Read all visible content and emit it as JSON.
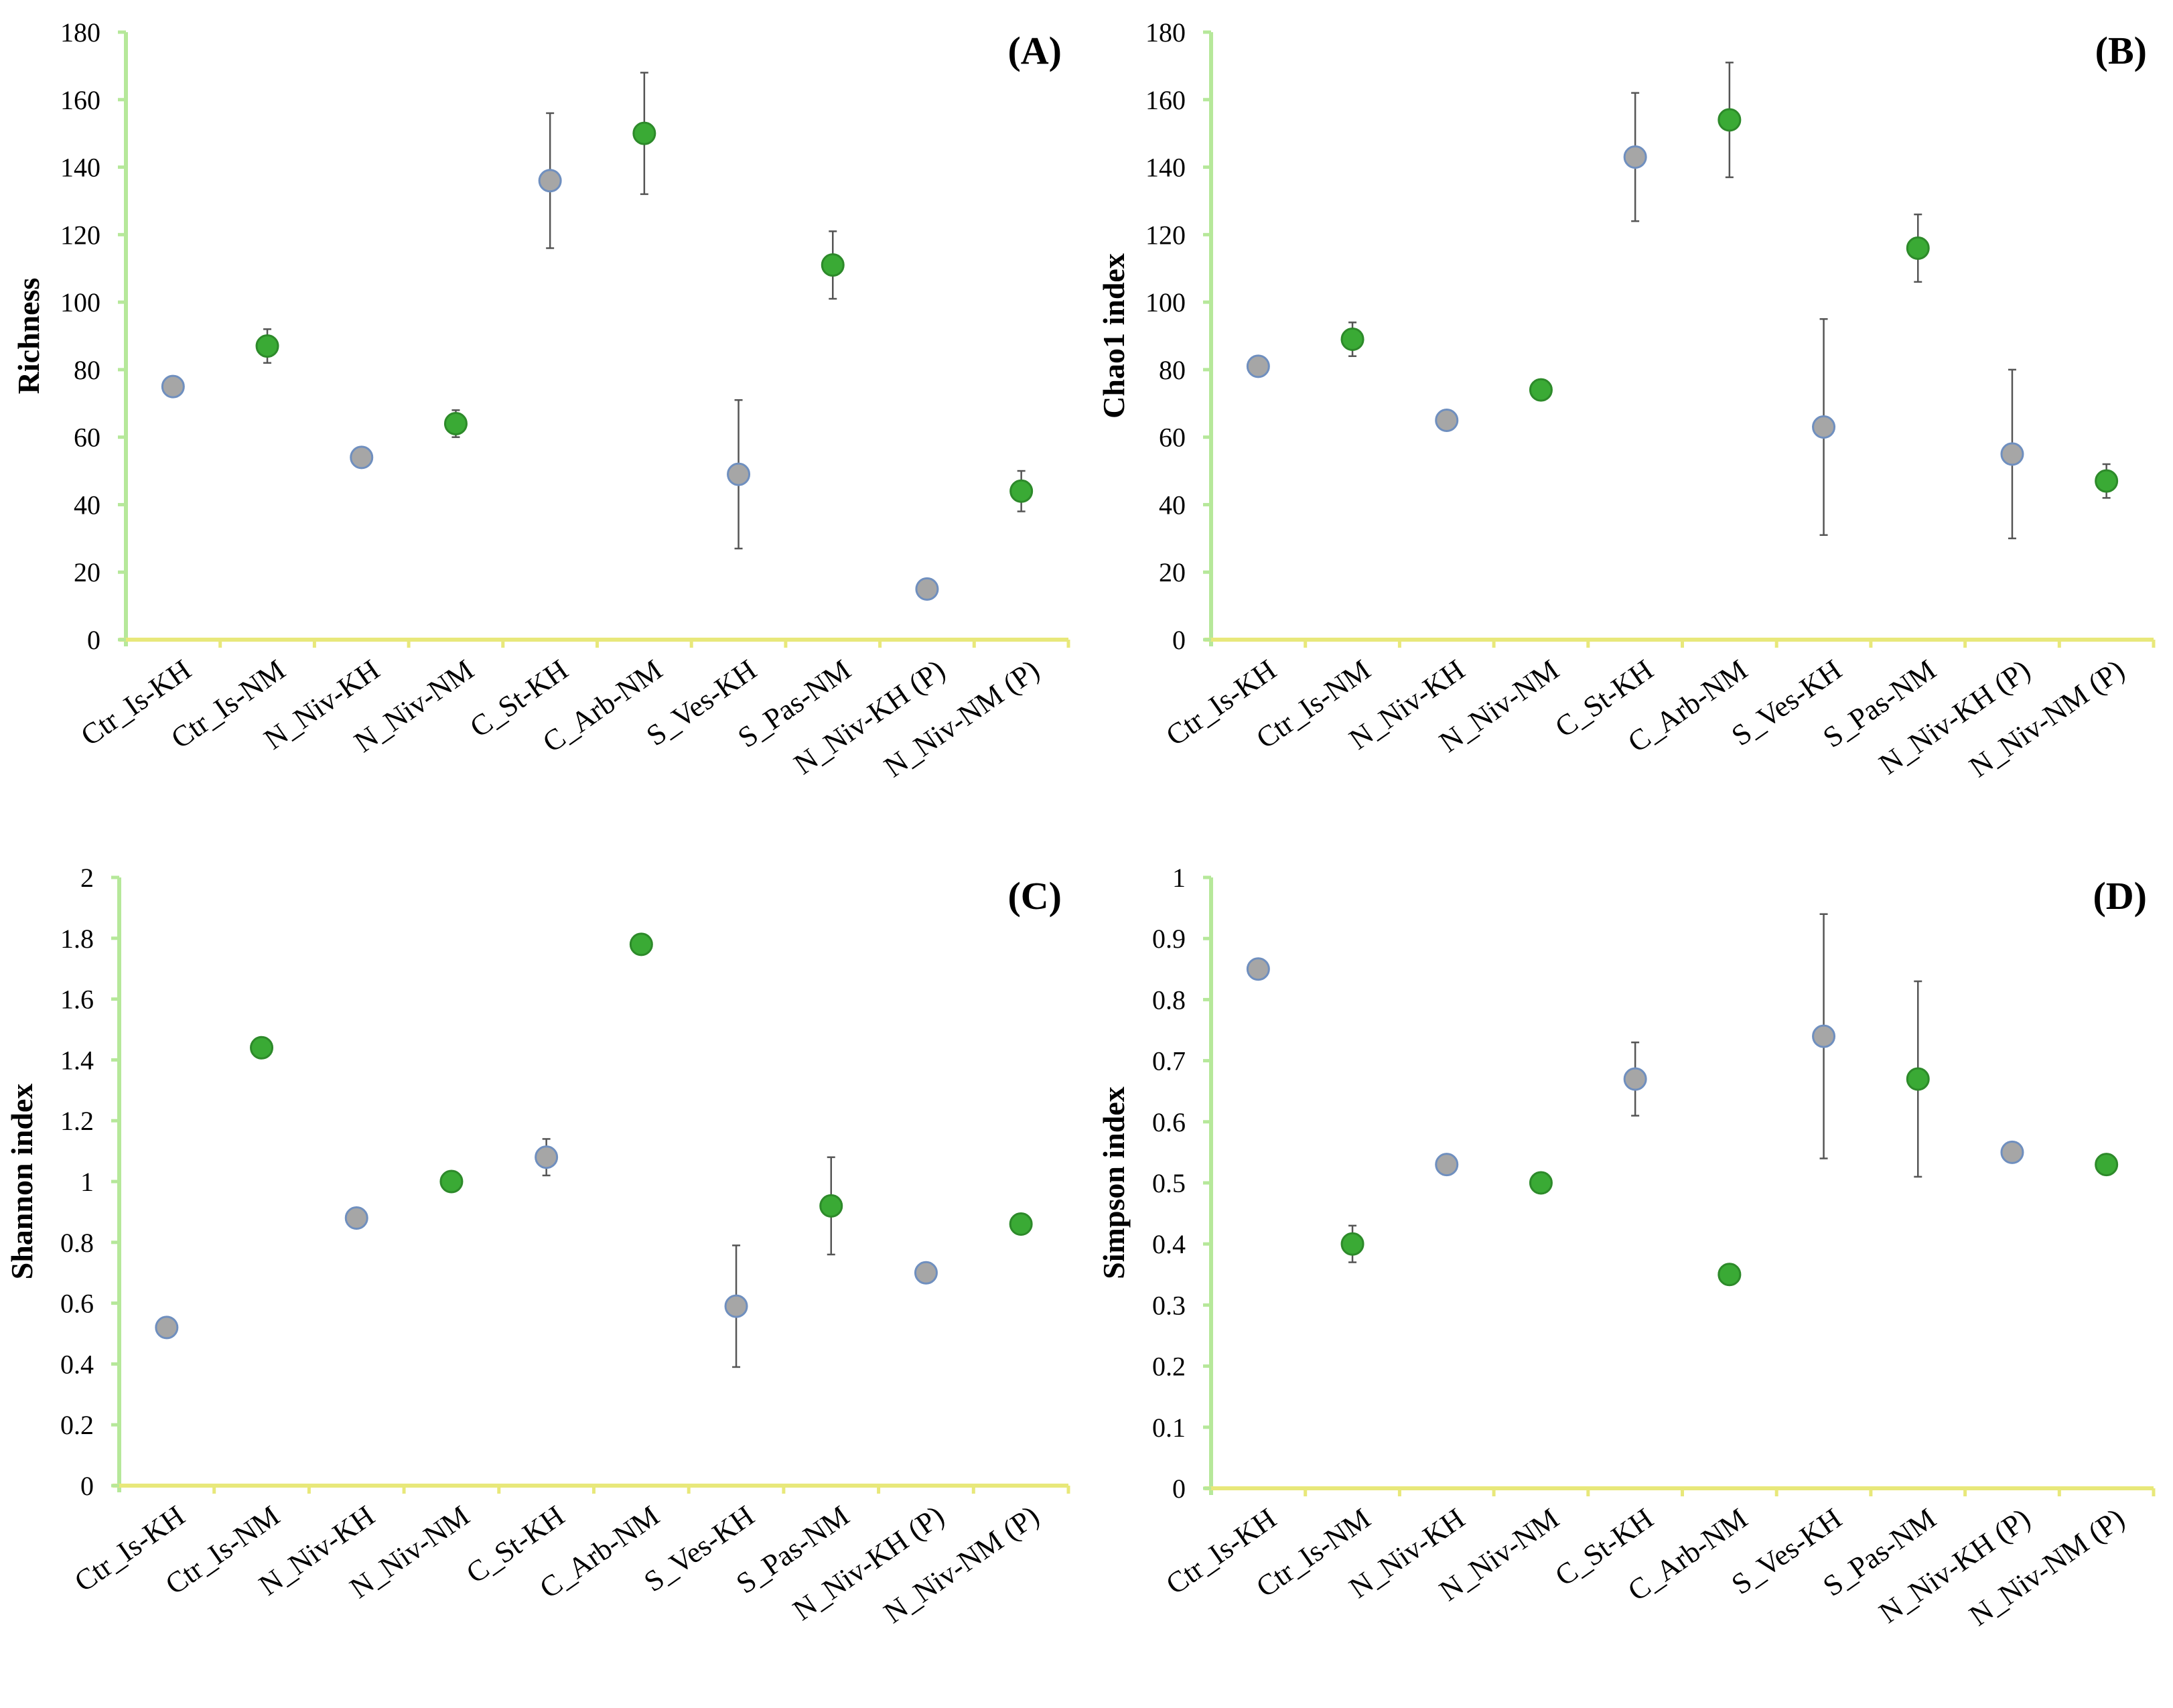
{
  "colors": {
    "kh_marker": "#a6a6a6",
    "kh_marker_edge": "#6f8fbf",
    "nm_marker": "#3aaa35",
    "nm_marker_edge": "#2d8a2a",
    "y_axis": "#b6e89a",
    "x_axis": "#e8e87a",
    "error_bar": "#555555"
  },
  "chart_data": [
    {
      "type": "scatter",
      "title": "(A)",
      "ylabel": "Richness",
      "xlabel": "",
      "ylim": [
        0,
        180
      ],
      "yticks": [
        0,
        20,
        40,
        60,
        80,
        100,
        120,
        140,
        160,
        180
      ],
      "yticklabels": [
        "0",
        "20",
        "40",
        "60",
        "80",
        "100",
        "120",
        "140",
        "160",
        "180"
      ],
      "categories": [
        "Ctr_Is-KH",
        "Ctr_Is-NM",
        "N_Niv-KH",
        "N_Niv-NM",
        "C_St-KH",
        "C_Arb-NM",
        "S_Ves-KH",
        "S_Pas-NM",
        "N_Niv-KH (P)",
        "N_Niv-NM (P)"
      ],
      "groups": [
        "KH",
        "NM",
        "KH",
        "NM",
        "KH",
        "NM",
        "KH",
        "NM",
        "KH",
        "NM"
      ],
      "values": [
        75,
        87,
        54,
        64,
        136,
        150,
        49,
        111,
        15,
        44
      ],
      "errors": [
        0,
        5,
        0,
        4,
        20,
        18,
        22,
        10,
        2,
        6
      ],
      "grid": false
    },
    {
      "type": "scatter",
      "title": "(B)",
      "ylabel": "Chao1 index",
      "xlabel": "",
      "ylim": [
        0,
        180
      ],
      "yticks": [
        0,
        20,
        40,
        60,
        80,
        100,
        120,
        140,
        160,
        180
      ],
      "yticklabels": [
        "0",
        "20",
        "40",
        "60",
        "80",
        "100",
        "120",
        "140",
        "160",
        "180"
      ],
      "categories": [
        "Ctr_Is-KH",
        "Ctr_Is-NM",
        "N_Niv-KH",
        "N_Niv-NM",
        "C_St-KH",
        "C_Arb-NM",
        "S_Ves-KH",
        "S_Pas-NM",
        "N_Niv-KH (P)",
        "N_Niv-NM (P)"
      ],
      "groups": [
        "KH",
        "NM",
        "KH",
        "NM",
        "KH",
        "NM",
        "KH",
        "NM",
        "KH",
        "NM"
      ],
      "values": [
        81,
        89,
        65,
        74,
        143,
        154,
        63,
        116,
        55,
        47
      ],
      "errors": [
        0,
        5,
        0,
        0,
        19,
        17,
        32,
        10,
        25,
        5
      ],
      "grid": false
    },
    {
      "type": "scatter",
      "title": "(C)",
      "ylabel": "Shannon index",
      "xlabel": "",
      "ylim": [
        0,
        2
      ],
      "yticks": [
        0,
        0.2,
        0.4,
        0.6,
        0.8,
        1,
        1.2,
        1.4,
        1.6,
        1.8,
        2
      ],
      "yticklabels": [
        "0",
        "0.2",
        "0.4",
        "0.6",
        "0.8",
        "1",
        "1.2",
        "1.4",
        "1.6",
        "1.8",
        "2"
      ],
      "categories": [
        "Ctr_Is-KH",
        "Ctr_Is-NM",
        "N_Niv-KH",
        "N_Niv-NM",
        "C_St-KH",
        "C_Arb-NM",
        "S_Ves-KH",
        "S_Pas-NM",
        "N_Niv-KH (P)",
        "N_Niv-NM (P)"
      ],
      "groups": [
        "KH",
        "NM",
        "KH",
        "NM",
        "KH",
        "NM",
        "KH",
        "NM",
        "KH",
        "NM"
      ],
      "values": [
        0.52,
        1.44,
        0.88,
        1.0,
        1.08,
        1.78,
        0.59,
        0.92,
        0.7,
        0.86
      ],
      "errors": [
        0,
        0,
        0,
        0,
        0.06,
        0,
        0.2,
        0.16,
        0,
        0
      ],
      "grid": false
    },
    {
      "type": "scatter",
      "title": "(D)",
      "ylabel": "Simpson index",
      "xlabel": "",
      "ylim": [
        0,
        1
      ],
      "yticks": [
        0,
        0.1,
        0.2,
        0.3,
        0.4,
        0.5,
        0.6,
        0.7,
        0.8,
        0.9,
        1
      ],
      "yticklabels": [
        "0",
        "0.1",
        "0.2",
        "0.3",
        "0.4",
        "0.5",
        "0.6",
        "0.7",
        "0.8",
        "0.9",
        "1"
      ],
      "categories": [
        "Ctr_Is-KH",
        "Ctr_Is-NM",
        "N_Niv-KH",
        "N_Niv-NM",
        "C_St-KH",
        "C_Arb-NM",
        "S_Ves-KH",
        "S_Pas-NM",
        "N_Niv-KH (P)",
        "N_Niv-NM (P)"
      ],
      "groups": [
        "KH",
        "NM",
        "KH",
        "NM",
        "KH",
        "NM",
        "KH",
        "NM",
        "KH",
        "NM"
      ],
      "values": [
        0.85,
        0.4,
        0.53,
        0.5,
        0.67,
        0.35,
        0.74,
        0.67,
        0.55,
        0.53
      ],
      "errors": [
        0,
        0.03,
        0,
        0,
        0.06,
        0,
        0.2,
        0.16,
        0,
        0
      ],
      "grid": false
    }
  ]
}
